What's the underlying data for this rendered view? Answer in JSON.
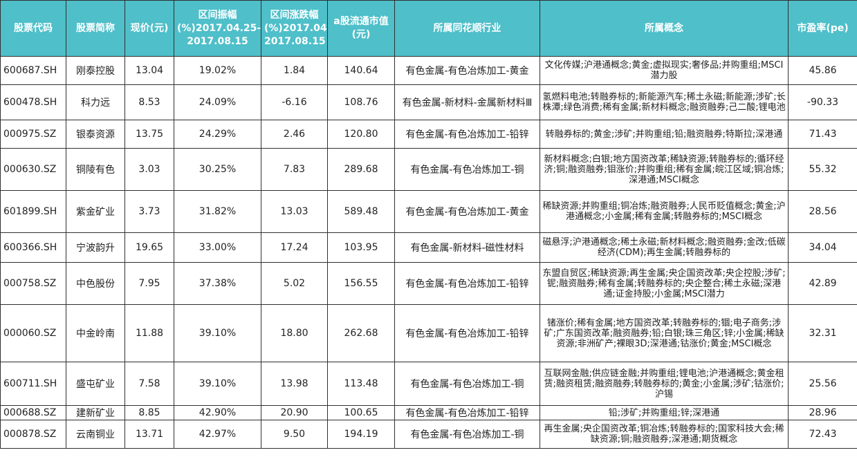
{
  "headers": {
    "code": "股票代码",
    "name": "股票简称",
    "price": "现价(元)",
    "amplitude": "区间振幅(%)2017.04.25-2017.08.15",
    "change": "区间涨跌幅(%)2017.04.25-2017.08.15",
    "market_cap": "a股流通市值(元)",
    "industry": "所属同花顺行业",
    "concept": "所属概念",
    "pe": "市盈率(pe)"
  },
  "rows": [
    {
      "code": "600687.SH",
      "name": "刚泰控股",
      "price": "13.04",
      "amplitude": "19.02%",
      "change": "1.84",
      "market_cap": "140.64",
      "industry": "有色金属-有色冶炼加工-黄金",
      "concept": "文化传媒;沪港通概念;黄金;虚拟现实;奢侈品;并购重组;MSCI潜力股",
      "pe": "45.86"
    },
    {
      "code": "600478.SH",
      "name": "科力远",
      "price": "8.53",
      "amplitude": "24.09%",
      "change": "-6.16",
      "market_cap": "108.76",
      "industry": "有色金属-新材料-金属新材料Ⅲ",
      "concept": "氢燃料电池;转融券标的;新能源汽车;稀土永磁;新能源;涉矿;长株潭;绿色消费;稀有金属;新材料概念;融资融券;己二酸;锂电池",
      "pe": "-90.33"
    },
    {
      "code": "000975.SZ",
      "name": "银泰资源",
      "price": "13.75",
      "amplitude": "24.29%",
      "change": "2.46",
      "market_cap": "120.80",
      "industry": "有色金属-有色冶炼加工-铅锌",
      "concept": "转融券标的;黄金;涉矿;并购重组;铅;融资融券;特斯拉;深港通",
      "pe": "71.43"
    },
    {
      "code": "000630.SZ",
      "name": "铜陵有色",
      "price": "3.03",
      "amplitude": "30.25%",
      "change": "7.83",
      "market_cap": "289.68",
      "industry": "有色金属-有色冶炼加工-铜",
      "concept": "新材料概念;白银;地方国资改革;稀缺资源;转融券标的;循环经济;铜;融资融券;钼涨价;并购重组;稀有金属;皖江区域;铜冶炼;深港通;MSCI概念",
      "pe": "55.32"
    },
    {
      "code": "601899.SH",
      "name": "紫金矿业",
      "price": "3.73",
      "amplitude": "31.82%",
      "change": "13.03",
      "market_cap": "589.48",
      "industry": "有色金属-有色冶炼加工-黄金",
      "concept": "稀缺资源;并购重组;铜冶炼;融资融券;人民币贬值概念;黄金;沪港通概念;小金属;稀有金属;转融券标的;MSCI概念",
      "pe": "28.56"
    },
    {
      "code": "600366.SH",
      "name": "宁波韵升",
      "price": "19.65",
      "amplitude": "33.00%",
      "change": "17.24",
      "market_cap": "103.95",
      "industry": "有色金属-新材料-磁性材料",
      "concept": "磁悬浮;沪港通概念;稀土永磁;新材料概念;融资融券;金改;低碳经济(CDM);再生金属;转融券标的",
      "pe": "34.04"
    },
    {
      "code": "000758.SZ",
      "name": "中色股份",
      "price": "7.95",
      "amplitude": "37.38%",
      "change": "5.02",
      "market_cap": "156.55",
      "industry": "有色金属-有色冶炼加工-铅锌",
      "concept": "东盟自贸区;稀缺资源;再生金属;央企国资改革;央企控股;涉矿;铌;融资融券;稀有金属;转融券标的;央企整合;稀土永磁;深港通;证金持股;小金属;MSCI潜力",
      "pe": "42.89"
    },
    {
      "code": "000060.SZ",
      "name": "中金岭南",
      "price": "11.88",
      "amplitude": "39.10%",
      "change": "18.80",
      "market_cap": "262.68",
      "industry": "有色金属-有色冶炼加工-铅锌",
      "concept": "锗涨价;稀有金属;地方国资改革;转融券标的;锢;电子商务;涉矿;广东国资改革;融资融券;铅;白银;珠三角区;锌;小金属;稀缺资源;非洲矿产;裸眼3D;深港通;钴涨价;黄金;MSCI概念",
      "pe": "32.31"
    },
    {
      "code": "600711.SH",
      "name": "盛屯矿业",
      "price": "7.58",
      "amplitude": "39.10%",
      "change": "13.98",
      "market_cap": "113.48",
      "industry": "有色金属-有色冶炼加工-铜",
      "concept": "互联网金融;供应链金融;并购重组;锂电池;沪港通概念;黄金租赁;融资租赁;融资融券;转融券标的;黄金;小金属;涉矿;钴涨价;沪锡",
      "pe": "25.56"
    },
    {
      "code": "000688.SZ",
      "name": "建新矿业",
      "price": "8.85",
      "amplitude": "42.90%",
      "change": "20.90",
      "market_cap": "100.65",
      "industry": "有色金属-有色冶炼加工-铅锌",
      "concept": "铅;涉矿;并购重组;锌;深港通",
      "pe": "28.96"
    },
    {
      "code": "000878.SZ",
      "name": "云南铜业",
      "price": "13.71",
      "amplitude": "42.97%",
      "change": "9.50",
      "market_cap": "194.19",
      "industry": "有色金属-有色冶炼加工-铜",
      "concept": "再生金属;央企国资改革;铜冶炼;转融券标的;国家科技大会;稀缺资源;铜;融资融券;深港通;期货概念",
      "pe": "72.43"
    }
  ]
}
